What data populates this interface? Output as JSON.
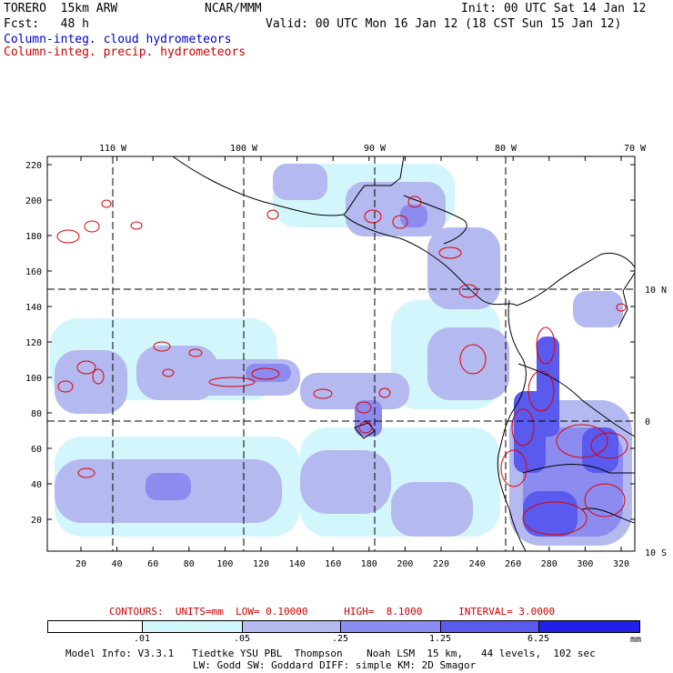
{
  "header": {
    "model": "TORERO  15km ARW",
    "org": "NCAR/MMM",
    "init": "Init: 00 UTC Sat 14 Jan 12",
    "fcst": "Fcst:   48 h",
    "valid": "Valid: 00 UTC Mon 16 Jan 12 (18 CST Sun 15 Jan 12)",
    "field1": "Column-integ. cloud hydrometeors",
    "field2": "Column-integ. precip. hydrometeors"
  },
  "map": {
    "lon_labels": [
      "110 W",
      "100 W",
      "90 W",
      "80 W",
      "70 W"
    ],
    "lat_labels": [
      "10 N",
      "0",
      "10 S"
    ],
    "y_ticks": [
      "220",
      "200",
      "180",
      "160",
      "140",
      "120",
      "100",
      "80",
      "60",
      "40",
      "20"
    ],
    "x_ticks": [
      "20",
      "40",
      "60",
      "80",
      "100",
      "120",
      "140",
      "160",
      "180",
      "200",
      "220",
      "240",
      "260",
      "280",
      "300",
      "320"
    ]
  },
  "contours": {
    "label": "CONTOURS:  UNITS=mm  LOW= 0.10000      HIGH=  8.1000      INTERVAL= 3.0000"
  },
  "colorbar": {
    "labels": [
      ".01",
      ".05",
      ".25",
      "1.25",
      "6.25"
    ],
    "unit": "mm",
    "colors": [
      "#ffffff",
      "#d2f6fb",
      "#b4b9f0",
      "#8c8cf0",
      "#5a5aee",
      "#2020e8"
    ]
  },
  "footer": {
    "line1": "Model Info: V3.3.1   Tiedtke YSU PBL  Thompson    Noah LSM  15 km,   44 levels,  102 sec",
    "line2": "LW: Godd SW: Goddard DIFF: simple KM: 2D Smagor"
  },
  "colors": {
    "cloud_label": "#0000cc",
    "precip_label": "#cc0000",
    "precip_contour": "#dd0000"
  }
}
